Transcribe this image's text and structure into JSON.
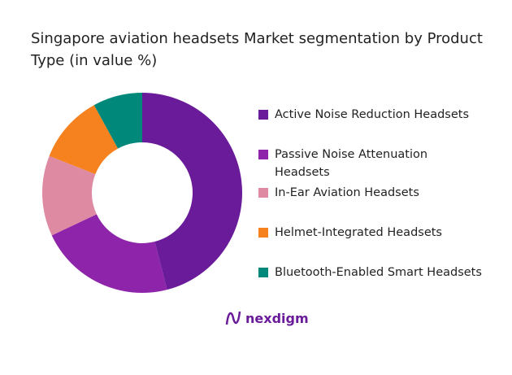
{
  "chart_data": {
    "type": "donut",
    "title": "Singapore aviation headsets Market segmentation by Product Type (in value %)",
    "categories": [
      "Active Noise Reduction Headsets",
      "Passive Noise Attenuation Headsets",
      "In-Ear Aviation Headsets",
      "Helmet-Integrated Headsets",
      "Bluetooth-Enabled Smart Headsets"
    ],
    "values": [
      46,
      22,
      13,
      11,
      8
    ],
    "colors": [
      "#6a1b9a",
      "#8e24aa",
      "#df8aa3",
      "#f5821f",
      "#00897b"
    ]
  },
  "logo": "nexdigm"
}
